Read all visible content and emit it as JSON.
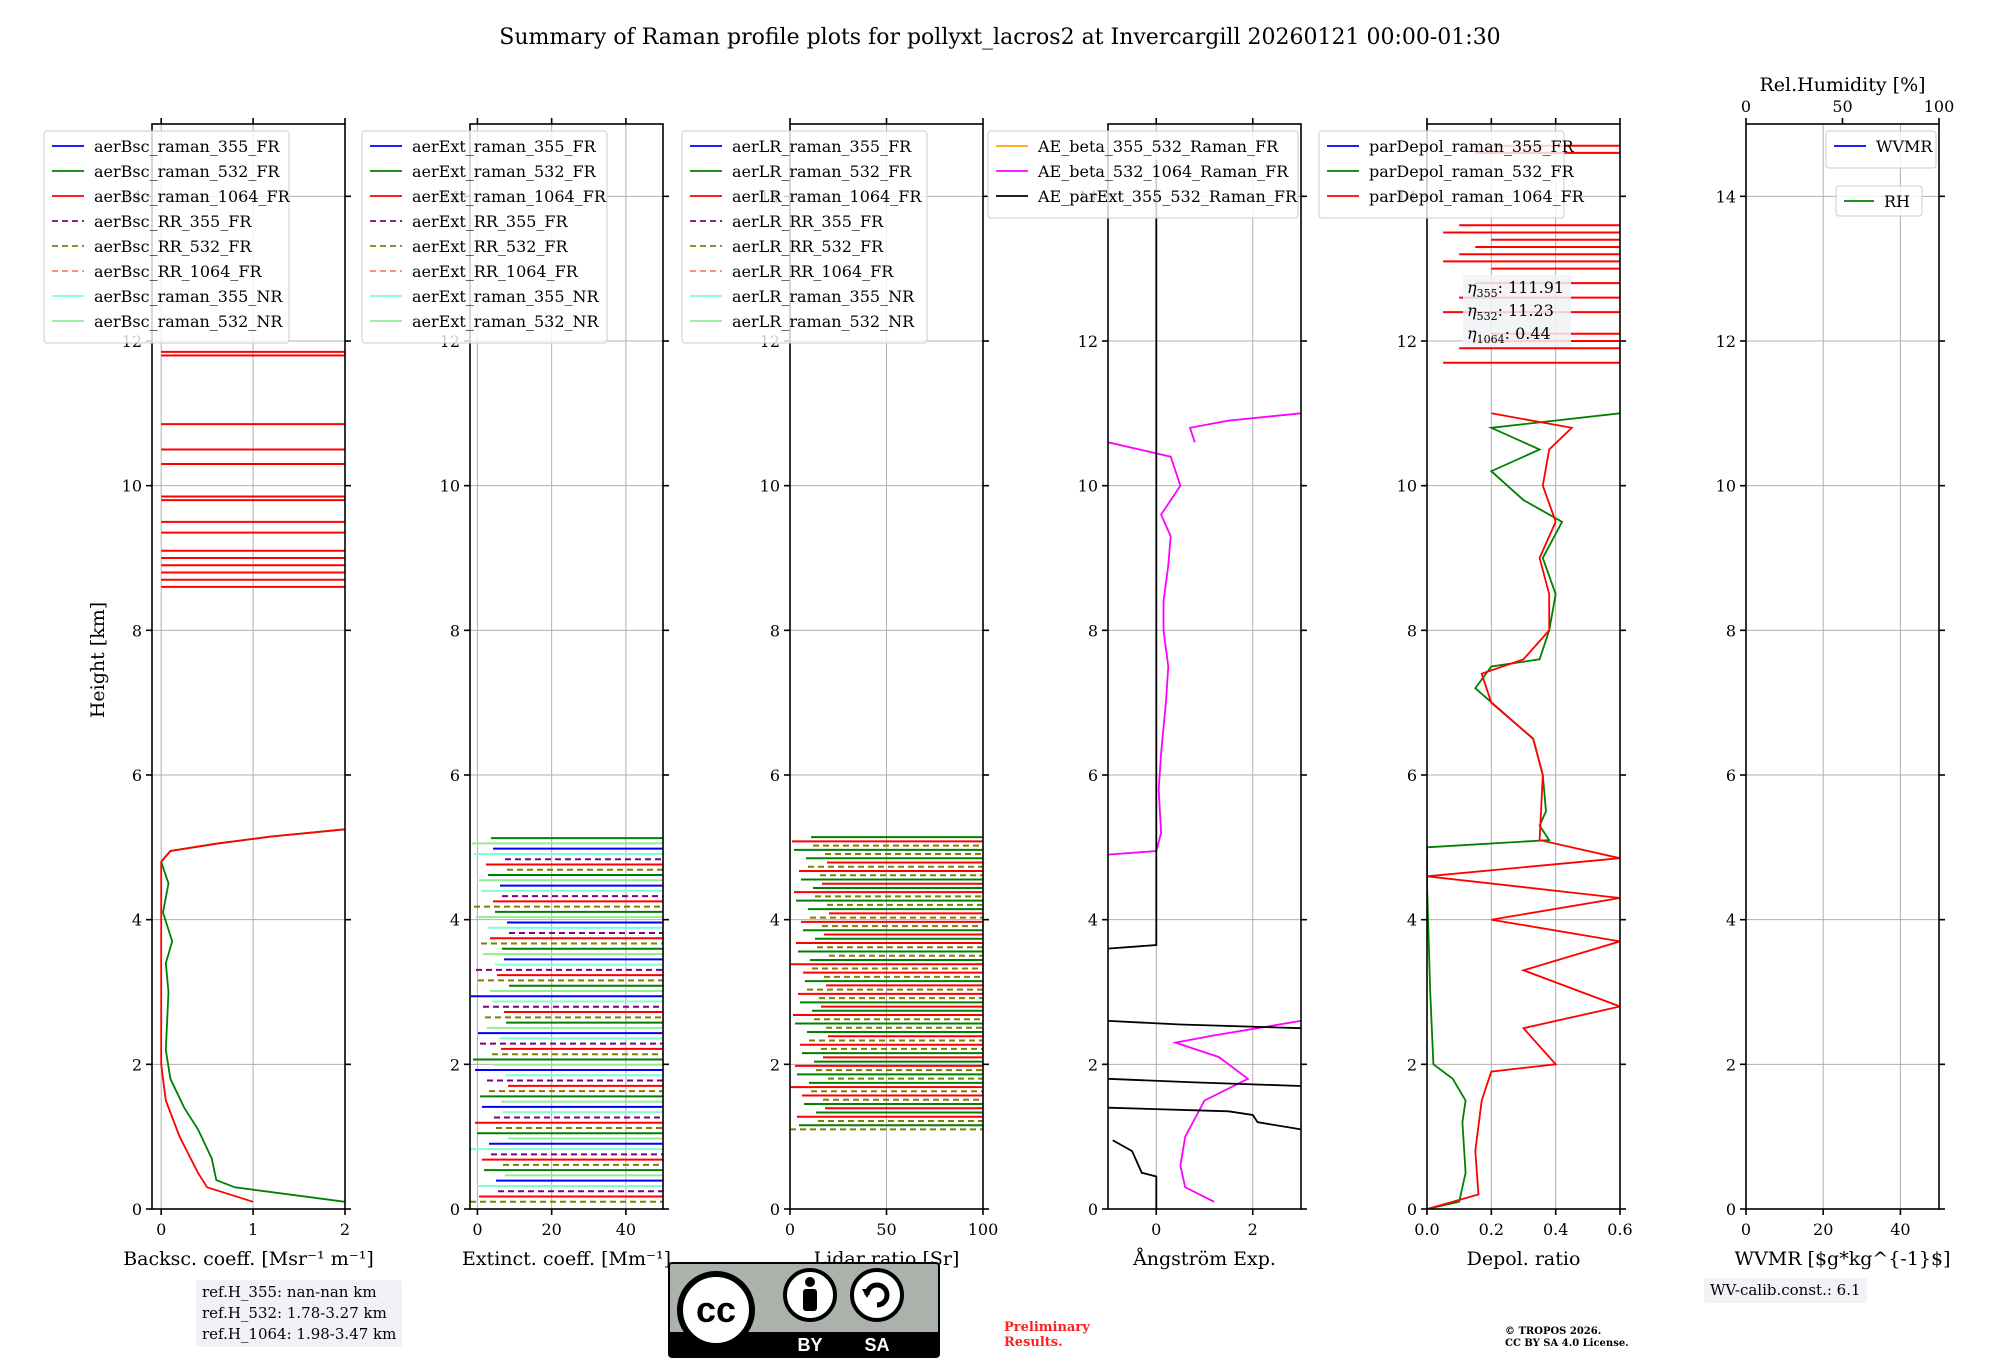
{
  "figure": {
    "title": "Summary of Raman profile plots for pollyxt_lacros2 at Invercargill 20260121 00:00-01:30",
    "ylabel": "Height [km]",
    "y_ticks": [
      "0",
      "2",
      "4",
      "6",
      "8",
      "10",
      "12",
      "14"
    ]
  },
  "chart_data": [
    {
      "type": "line",
      "id": "backscatter",
      "xlabel": "Backsc. coeff. [Msr⁻¹ m⁻¹]",
      "xlim": [
        -0.1,
        2
      ],
      "ylim": [
        0,
        15
      ],
      "x_ticks": [
        "0",
        "1",
        "2"
      ],
      "legend": [
        {
          "name": "aerBsc_raman_355_FR",
          "color": "#0000ff",
          "dash": "solid"
        },
        {
          "name": "aerBsc_raman_532_FR",
          "color": "#008000",
          "dash": "solid"
        },
        {
          "name": "aerBsc_raman_1064_FR",
          "color": "#ff0000",
          "dash": "solid"
        },
        {
          "name": "aerBsc_RR_355_FR",
          "color": "#800080",
          "dash": "dashed"
        },
        {
          "name": "aerBsc_RR_532_FR",
          "color": "#808000",
          "dash": "dashed"
        },
        {
          "name": "aerBsc_RR_1064_FR",
          "color": "#fa8072",
          "dash": "dashed"
        },
        {
          "name": "aerBsc_raman_355_NR",
          "color": "#7fffd4",
          "dash": "solid"
        },
        {
          "name": "aerBsc_raman_532_NR",
          "color": "#90ee90",
          "dash": "solid"
        }
      ],
      "series": [
        {
          "name": "aerBsc_raman_532_FR",
          "color": "#008000",
          "points": [
            [
              2.0,
              0.1
            ],
            [
              0.8,
              0.3
            ],
            [
              0.6,
              0.4
            ],
            [
              0.55,
              0.7
            ],
            [
              0.4,
              1.1
            ],
            [
              0.25,
              1.4
            ],
            [
              0.1,
              1.8
            ],
            [
              0.05,
              2.2
            ],
            [
              0.08,
              3.0
            ],
            [
              0.05,
              3.4
            ],
            [
              0.12,
              3.7
            ],
            [
              0.02,
              4.1
            ],
            [
              0.08,
              4.5
            ],
            [
              0.0,
              4.8
            ],
            [
              0.1,
              4.95
            ],
            [
              0.6,
              5.05
            ],
            [
              1.2,
              5.15
            ],
            [
              2.0,
              5.25
            ]
          ]
        },
        {
          "name": "aerBsc_raman_1064_FR",
          "color": "#ff0000",
          "points": [
            [
              1.0,
              0.1
            ],
            [
              0.5,
              0.3
            ],
            [
              0.4,
              0.5
            ],
            [
              0.2,
              1.0
            ],
            [
              0.05,
              1.5
            ],
            [
              0.0,
              2.0
            ],
            [
              0.0,
              4.8
            ],
            [
              0.1,
              4.95
            ],
            [
              0.6,
              5.05
            ],
            [
              1.2,
              5.15
            ],
            [
              2.0,
              5.25
            ]
          ]
        }
      ],
      "spike_heights_km": [
        8.6,
        8.7,
        8.8,
        8.9,
        9.0,
        9.1,
        9.35,
        9.5,
        9.8,
        9.85,
        10.3,
        10.5,
        10.85,
        11.8,
        11.85
      ]
    },
    {
      "type": "line",
      "id": "extinction",
      "xlabel": "Extinct. coeff. [Mm⁻¹]",
      "xlim": [
        -2,
        50
      ],
      "ylim": [
        0,
        15
      ],
      "x_ticks": [
        "0",
        "20",
        "40"
      ],
      "legend": [
        {
          "name": "aerExt_raman_355_FR",
          "color": "#0000ff",
          "dash": "solid"
        },
        {
          "name": "aerExt_raman_532_FR",
          "color": "#008000",
          "dash": "solid"
        },
        {
          "name": "aerExt_raman_1064_FR",
          "color": "#ff0000",
          "dash": "solid"
        },
        {
          "name": "aerExt_RR_355_FR",
          "color": "#800080",
          "dash": "dashed"
        },
        {
          "name": "aerExt_RR_532_FR",
          "color": "#808000",
          "dash": "dashed"
        },
        {
          "name": "aerExt_RR_1064_FR",
          "color": "#fa8072",
          "dash": "dashed"
        },
        {
          "name": "aerExt_raman_355_NR",
          "color": "#7fffd4",
          "dash": "solid"
        },
        {
          "name": "aerExt_raman_532_NR",
          "color": "#90ee90",
          "dash": "solid"
        }
      ]
    },
    {
      "type": "line",
      "id": "lidar_ratio",
      "xlabel": "Lidar ratio [Sr]",
      "xlim": [
        0,
        100
      ],
      "ylim": [
        0,
        15
      ],
      "x_ticks": [
        "0",
        "50",
        "100"
      ],
      "legend": [
        {
          "name": "aerLR_raman_355_FR",
          "color": "#0000ff",
          "dash": "solid"
        },
        {
          "name": "aerLR_raman_532_FR",
          "color": "#008000",
          "dash": "solid"
        },
        {
          "name": "aerLR_raman_1064_FR",
          "color": "#ff0000",
          "dash": "solid"
        },
        {
          "name": "aerLR_RR_355_FR",
          "color": "#800080",
          "dash": "dashed"
        },
        {
          "name": "aerLR_RR_532_FR",
          "color": "#808000",
          "dash": "dashed"
        },
        {
          "name": "aerLR_RR_1064_FR",
          "color": "#fa8072",
          "dash": "dashed"
        },
        {
          "name": "aerLR_raman_355_NR",
          "color": "#7fffd4",
          "dash": "solid"
        },
        {
          "name": "aerLR_raman_532_NR",
          "color": "#90ee90",
          "dash": "solid"
        }
      ]
    },
    {
      "type": "line",
      "id": "angstrom",
      "xlabel": "Ångström Exp.",
      "xlim": [
        -1,
        3
      ],
      "ylim": [
        0,
        15
      ],
      "x_ticks": [
        "0",
        "2"
      ],
      "legend": [
        {
          "name": "AE_beta_355_532_Raman_FR",
          "color": "#ffa500",
          "dash": "solid"
        },
        {
          "name": "AE_beta_532_1064_Raman_FR",
          "color": "#ff00ff",
          "dash": "solid"
        },
        {
          "name": "AE_parExt_355_532_Raman_FR",
          "color": "#000000",
          "dash": "solid"
        }
      ],
      "series": [
        {
          "name": "AE_beta_532_1064_Raman_FR",
          "color": "#ff00ff",
          "points": [
            [
              1.2,
              0.1
            ],
            [
              0.6,
              0.3
            ],
            [
              0.5,
              0.6
            ],
            [
              0.6,
              1.0
            ],
            [
              1.0,
              1.5
            ],
            [
              1.9,
              1.8
            ],
            [
              1.3,
              2.1
            ],
            [
              0.4,
              2.3
            ],
            [
              1.2,
              2.4
            ],
            [
              3.0,
              2.6
            ]
          ]
        },
        {
          "name": "AE_beta_532_1064_Raman_FR",
          "color": "#ff00ff",
          "points": [
            [
              -1,
              4.9
            ],
            [
              0.0,
              4.95
            ],
            [
              0.1,
              5.2
            ],
            [
              0.05,
              5.8
            ],
            [
              0.1,
              6.3
            ],
            [
              0.2,
              7.0
            ],
            [
              0.25,
              7.5
            ],
            [
              0.15,
              8.0
            ],
            [
              0.15,
              8.4
            ],
            [
              0.25,
              8.9
            ],
            [
              0.3,
              9.3
            ],
            [
              0.1,
              9.6
            ],
            [
              0.5,
              10.0
            ],
            [
              0.3,
              10.4
            ],
            [
              -1,
              10.6
            ]
          ]
        },
        {
          "name": "AE_beta_532_1064_Raman_FR",
          "color": "#ff00ff",
          "points": [
            [
              0.8,
              10.6
            ],
            [
              0.7,
              10.8
            ],
            [
              1.5,
              10.9
            ],
            [
              3.0,
              11.0
            ]
          ]
        },
        {
          "name": "AE_parExt_355_532_Raman_FR",
          "color": "#000000",
          "points": [
            [
              0.0,
              0.0
            ],
            [
              0.0,
              0.45
            ],
            [
              -0.3,
              0.5
            ],
            [
              -0.5,
              0.8
            ],
            [
              -0.9,
              0.95
            ]
          ]
        },
        {
          "name": "AE_parExt_355_532_Raman_FR",
          "color": "#000000",
          "points": [
            [
              -1,
              1.4
            ],
            [
              1.5,
              1.35
            ],
            [
              2.0,
              1.3
            ],
            [
              2.1,
              1.2
            ],
            [
              3.0,
              1.1
            ]
          ]
        },
        {
          "name": "AE_parExt_355_532_Raman_FR",
          "color": "#000000",
          "points": [
            [
              -1,
              1.8
            ],
            [
              0.8,
              1.75
            ],
            [
              3.0,
              1.7
            ]
          ]
        },
        {
          "name": "AE_parExt_355_532_Raman_FR",
          "color": "#000000",
          "points": [
            [
              -1,
              2.6
            ],
            [
              0.5,
              2.55
            ],
            [
              3.0,
              2.5
            ]
          ]
        },
        {
          "name": "AE_parExt_355_532_Raman_FR",
          "color": "#000000",
          "points": [
            [
              -1,
              3.6
            ],
            [
              0.0,
              3.65
            ],
            [
              0.0,
              14.5
            ]
          ]
        }
      ]
    },
    {
      "type": "line",
      "id": "depol",
      "xlabel": "Depol. ratio",
      "xlim": [
        0,
        0.6
      ],
      "ylim": [
        0,
        15
      ],
      "x_ticks": [
        "0.0",
        "0.2",
        "0.4",
        "0.6"
      ],
      "legend": [
        {
          "name": "parDepol_raman_355_FR",
          "color": "#0000ff",
          "dash": "solid"
        },
        {
          "name": "parDepol_raman_532_FR",
          "color": "#008000",
          "dash": "solid"
        },
        {
          "name": "parDepol_raman_1064_FR",
          "color": "#ff0000",
          "dash": "solid"
        }
      ],
      "annotations": [
        {
          "symbol": "η",
          "sub": "355",
          "value": ": 111.91"
        },
        {
          "symbol": "η",
          "sub": "532",
          "value": ": 11.23"
        },
        {
          "symbol": "η",
          "sub": "1064",
          "value": ": 0.44"
        }
      ],
      "series": [
        {
          "name": "parDepol_raman_532_FR",
          "color": "#008000",
          "points": [
            [
              0.0,
              0.0
            ],
            [
              0.1,
              0.1
            ],
            [
              0.12,
              0.5
            ],
            [
              0.11,
              1.2
            ],
            [
              0.12,
              1.5
            ],
            [
              0.08,
              1.8
            ],
            [
              0.02,
              2.0
            ],
            [
              0.01,
              3.0
            ],
            [
              0.0,
              4.5
            ],
            [
              0.0,
              5.0
            ],
            [
              0.38,
              5.1
            ],
            [
              0.35,
              5.3
            ],
            [
              0.37,
              5.5
            ],
            [
              0.36,
              6.0
            ],
            [
              0.33,
              6.5
            ],
            [
              0.15,
              7.2
            ],
            [
              0.2,
              7.5
            ],
            [
              0.35,
              7.6
            ],
            [
              0.38,
              8.0
            ],
            [
              0.4,
              8.5
            ],
            [
              0.36,
              9.0
            ],
            [
              0.42,
              9.5
            ],
            [
              0.3,
              9.8
            ],
            [
              0.2,
              10.2
            ],
            [
              0.35,
              10.5
            ],
            [
              0.2,
              10.8
            ],
            [
              0.6,
              11.0
            ]
          ]
        },
        {
          "name": "parDepol_raman_1064_FR",
          "color": "#ff0000",
          "points": [
            [
              0.0,
              0.0
            ],
            [
              0.16,
              0.2
            ],
            [
              0.15,
              0.8
            ],
            [
              0.17,
              1.5
            ],
            [
              0.2,
              1.9
            ],
            [
              0.4,
              2.0
            ],
            [
              0.3,
              2.5
            ],
            [
              0.6,
              2.8
            ],
            [
              0.3,
              3.3
            ],
            [
              0.6,
              3.7
            ],
            [
              0.2,
              4.0
            ],
            [
              0.6,
              4.3
            ],
            [
              0.0,
              4.6
            ],
            [
              0.6,
              4.85
            ],
            [
              0.35,
              5.1
            ],
            [
              0.36,
              6.0
            ],
            [
              0.33,
              6.5
            ],
            [
              0.2,
              7.0
            ],
            [
              0.17,
              7.4
            ],
            [
              0.3,
              7.6
            ],
            [
              0.38,
              8.0
            ],
            [
              0.38,
              8.5
            ],
            [
              0.35,
              9.0
            ],
            [
              0.4,
              9.5
            ],
            [
              0.36,
              10.0
            ],
            [
              0.38,
              10.5
            ],
            [
              0.45,
              10.8
            ],
            [
              0.2,
              11.0
            ]
          ]
        }
      ],
      "spike_heights_km": [
        11.7,
        11.9,
        12.0,
        12.1,
        12.4,
        12.6,
        12.8,
        13.0,
        13.1,
        13.2,
        13.3,
        13.4,
        13.5,
        13.6,
        14.6,
        14.7
      ]
    },
    {
      "type": "line",
      "id": "wvmr",
      "xlabel": "WVMR [$g*kg^{-1}$]",
      "top_label": "Rel.Humidity [%]",
      "xlim": [
        0,
        50
      ],
      "top_xlim": [
        0,
        100
      ],
      "ylim": [
        0,
        15
      ],
      "x_ticks": [
        "0",
        "20",
        "40"
      ],
      "top_ticks": [
        "0",
        "50",
        "100"
      ],
      "legend": [
        {
          "name": "WVMR",
          "color": "#0000ff",
          "dash": "solid"
        }
      ],
      "legend2": [
        {
          "name": "RH",
          "color": "#008000",
          "dash": "solid"
        }
      ]
    }
  ],
  "footer": {
    "ref_heights": "ref.H_355: nan-nan km\nref.H_532: 1.78-3.27 km\nref.H_1064: 1.98-3.47 km",
    "wv_calib": "WV-calib.const.: 6.1",
    "preliminary": "Preliminary\nResults.",
    "copyright": "© TROPOS 2026.\nCC BY SA 4.0 License.",
    "cc_label_by": "BY",
    "cc_label_sa": "SA",
    "cc_label_cc": "cc"
  },
  "colors": {
    "blue": "#0000ff",
    "green": "#008000",
    "red": "#ff0000",
    "purple": "#800080",
    "olive": "#808000",
    "salmon": "#fa8072",
    "aqua": "#7fffd4",
    "lightgreen": "#90ee90",
    "orange": "#ffa500",
    "magenta": "#ff00ff",
    "black": "#000000"
  }
}
